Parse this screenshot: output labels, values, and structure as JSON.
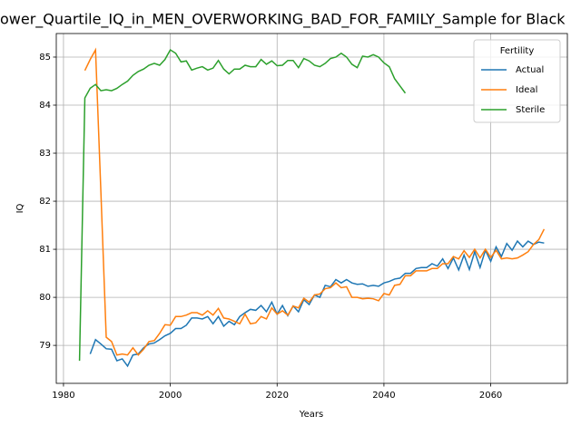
{
  "chart_data": {
    "type": "line",
    "title": "ower_Quartile_IQ_in_MEN_OVERWORKING_BAD_FOR_FAMILY_Sample for Black",
    "xlabel": "Years",
    "ylabel": "IQ",
    "x": [
      1983,
      1984,
      1985,
      1986,
      1987,
      1988,
      1989,
      1990,
      1991,
      1992,
      1993,
      1994,
      1995,
      1996,
      1997,
      1998,
      1999,
      2000,
      2001,
      2002,
      2003,
      2004,
      2005,
      2006,
      2007,
      2008,
      2009,
      2010,
      2011,
      2012,
      2013,
      2014,
      2015,
      2016,
      2017,
      2018,
      2019,
      2020,
      2021,
      2022,
      2023,
      2024,
      2025,
      2026,
      2027,
      2028,
      2029,
      2030,
      2031,
      2032,
      2033,
      2034,
      2035,
      2036,
      2037,
      2038,
      2039,
      2040,
      2041,
      2042,
      2043,
      2044,
      2045,
      2046,
      2047,
      2048,
      2049,
      2050,
      2051,
      2052,
      2053,
      2054,
      2055,
      2056,
      2057,
      2058,
      2059,
      2060,
      2061,
      2062,
      2063,
      2064,
      2065,
      2066,
      2067,
      2068,
      2069,
      2070
    ],
    "series": [
      {
        "name": "Actual",
        "color": "#1f77b4",
        "values": [
          null,
          null,
          78.82,
          79.12,
          79.03,
          78.93,
          78.92,
          78.68,
          78.72,
          78.57,
          78.8,
          78.82,
          78.95,
          79.03,
          79.05,
          79.12,
          79.2,
          79.25,
          79.35,
          79.35,
          79.42,
          79.57,
          79.57,
          79.55,
          79.6,
          79.45,
          79.6,
          79.4,
          79.5,
          79.43,
          79.6,
          79.68,
          79.75,
          79.73,
          79.83,
          79.7,
          79.9,
          79.65,
          79.83,
          79.62,
          79.82,
          79.7,
          79.95,
          79.85,
          80.05,
          80.0,
          80.25,
          80.22,
          80.37,
          80.3,
          80.37,
          80.3,
          80.27,
          80.28,
          80.23,
          80.25,
          80.23,
          80.3,
          80.33,
          80.38,
          80.4,
          80.5,
          80.5,
          80.6,
          80.62,
          80.62,
          80.7,
          80.65,
          80.8,
          80.6,
          80.82,
          80.57,
          80.88,
          80.58,
          80.95,
          80.62,
          80.98,
          80.75,
          81.05,
          80.85,
          81.12,
          80.98,
          81.17,
          81.05,
          81.17,
          81.1,
          81.15,
          81.13
        ]
      },
      {
        "name": "Ideal",
        "color": "#ff7f0e",
        "values": [
          null,
          84.72,
          84.95,
          85.15,
          82.2,
          79.17,
          79.08,
          78.8,
          78.82,
          78.8,
          78.95,
          78.8,
          78.92,
          79.08,
          79.1,
          79.25,
          79.43,
          79.42,
          79.6,
          79.6,
          79.63,
          79.68,
          79.68,
          79.63,
          79.72,
          79.63,
          79.77,
          79.57,
          79.55,
          79.5,
          79.45,
          79.65,
          79.45,
          79.47,
          79.6,
          79.55,
          79.78,
          79.65,
          79.72,
          79.63,
          79.82,
          79.78,
          79.98,
          79.9,
          80.05,
          80.07,
          80.18,
          80.2,
          80.3,
          80.2,
          80.22,
          80.0,
          80.0,
          79.97,
          79.98,
          79.97,
          79.93,
          80.08,
          80.05,
          80.25,
          80.27,
          80.45,
          80.45,
          80.55,
          80.55,
          80.55,
          80.6,
          80.6,
          80.7,
          80.7,
          80.85,
          80.8,
          80.97,
          80.83,
          81.0,
          80.82,
          81.0,
          80.83,
          80.98,
          80.8,
          80.82,
          80.8,
          80.82,
          80.88,
          80.95,
          81.1,
          81.2,
          81.42
        ]
      },
      {
        "name": "Sterile",
        "color": "#2ca02c",
        "values": [
          78.68,
          84.15,
          84.35,
          84.43,
          84.3,
          84.32,
          84.3,
          84.35,
          84.43,
          84.5,
          84.62,
          84.7,
          84.75,
          84.83,
          84.87,
          84.83,
          84.95,
          85.15,
          85.08,
          84.9,
          84.92,
          84.73,
          84.77,
          84.8,
          84.73,
          84.77,
          84.93,
          84.75,
          84.65,
          84.75,
          84.75,
          84.83,
          84.8,
          84.8,
          84.95,
          84.85,
          84.92,
          84.82,
          84.83,
          84.93,
          84.93,
          84.78,
          84.97,
          84.92,
          84.83,
          84.8,
          84.87,
          84.97,
          85.0,
          85.08,
          85.0,
          84.85,
          84.78,
          85.02,
          85.0,
          85.05,
          85.0,
          84.88,
          84.8,
          84.55,
          84.4,
          84.25,
          null,
          null,
          null,
          null,
          null,
          null,
          null,
          null,
          null,
          null,
          null,
          null,
          null,
          null,
          null,
          null,
          null,
          null,
          null,
          null,
          null,
          null,
          null,
          null,
          null,
          null
        ]
      }
    ],
    "xlim": [
      1978.65,
      2074.35
    ],
    "ylim": [
      78.21,
      85.49
    ],
    "xticks": [
      1980,
      2000,
      2020,
      2040,
      2060
    ],
    "yticks": [
      79,
      80,
      81,
      82,
      83,
      84,
      85
    ],
    "grid": true,
    "legend_title": "Fertility",
    "legend_loc": "upper right"
  }
}
